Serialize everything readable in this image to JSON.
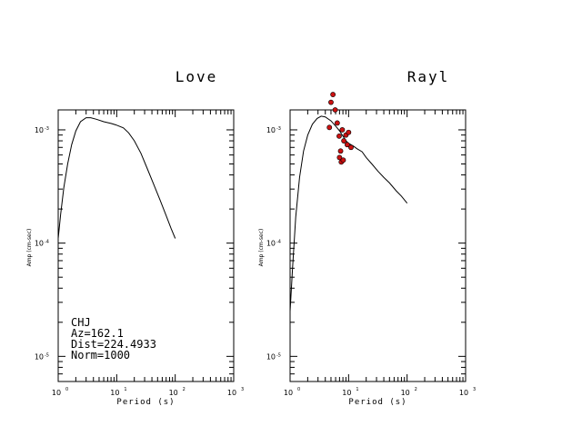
{
  "chart_data": [
    {
      "type": "line",
      "title": "Love",
      "xlabel": "Period (s)",
      "ylabel": "Amp (cm-sec)",
      "x_scale": "log",
      "y_scale": "log",
      "xlim": [
        1,
        1000
      ],
      "ylim": [
        6e-06,
        0.0015
      ],
      "x_ticks": [
        {
          "base": "10",
          "exp": "0"
        },
        {
          "base": "10",
          "exp": "1"
        },
        {
          "base": "10",
          "exp": "2"
        },
        {
          "base": "10",
          "exp": "3"
        }
      ],
      "y_ticks": [
        {
          "value": 1e-05,
          "base": "10",
          "exp": "-5"
        },
        {
          "value": 0.0001,
          "base": "10",
          "exp": "-4"
        },
        {
          "value": 0.001,
          "base": "10",
          "exp": "-3"
        }
      ],
      "series": [
        {
          "x": [
            1.0,
            1.1,
            1.25,
            1.45,
            1.7,
            2.0,
            2.4,
            3.0,
            3.6,
            4.5,
            6,
            8,
            10,
            13,
            16,
            20,
            26,
            33,
            42,
            55,
            70,
            85,
            100
          ],
          "y": [
            0.00011,
            0.00018,
            0.00031,
            0.0005,
            0.00074,
            0.00098,
            0.00118,
            0.00128,
            0.00128,
            0.00124,
            0.00118,
            0.00114,
            0.0011,
            0.00104,
            0.00094,
            0.0008,
            0.00062,
            0.00046,
            0.00034,
            0.00024,
            0.000175,
            0.000135,
            0.00011
          ]
        }
      ],
      "info": {
        "station": "CHJ",
        "az": "Az=162.1",
        "dist": "Dist=224.4933",
        "norm": "Norm=1000"
      },
      "grid": false
    },
    {
      "type": "line",
      "title": "Rayl",
      "xlabel": "Period (s)",
      "ylabel": "Amp (cm-sec)",
      "x_scale": "log",
      "y_scale": "log",
      "xlim": [
        1,
        1000
      ],
      "ylim": [
        6e-06,
        0.0015
      ],
      "x_ticks": [
        {
          "base": "10",
          "exp": "0"
        },
        {
          "base": "10",
          "exp": "1"
        },
        {
          "base": "10",
          "exp": "2"
        },
        {
          "base": "10",
          "exp": "3"
        }
      ],
      "y_ticks": [
        {
          "value": 1e-05,
          "base": "10",
          "exp": "-5"
        },
        {
          "value": 0.0001,
          "base": "10",
          "exp": "-4"
        },
        {
          "value": 0.001,
          "base": "10",
          "exp": "-3"
        }
      ],
      "series": [
        {
          "x": [
            1.0,
            1.1,
            1.25,
            1.45,
            1.7,
            2.0,
            2.4,
            2.9,
            3.4,
            4.0,
            5.0,
            6.0,
            7.0,
            8.0,
            9.0,
            10.0,
            12,
            14,
            17,
            20,
            25,
            32,
            40,
            50,
            65,
            80,
            100
          ],
          "y": [
            2.5e-05,
            6e-05,
            0.00017,
            0.00038,
            0.00065,
            0.0009,
            0.00112,
            0.00126,
            0.00132,
            0.0013,
            0.0012,
            0.00108,
            0.00098,
            0.00088,
            0.0008,
            0.00076,
            0.00072,
            0.00068,
            0.00064,
            0.00057,
            0.0005,
            0.00043,
            0.00038,
            0.00034,
            0.00029,
            0.00026,
            0.000225
          ]
        }
      ],
      "observations": {
        "color": "#cc1111",
        "x": [
          4.7,
          5.0,
          5.4,
          5.9,
          6.4,
          6.9,
          7.3,
          7.8,
          8.3,
          9.0,
          9.5,
          10.0,
          11.0,
          7.0,
          7.5,
          8.1
        ],
        "y": [
          0.00105,
          0.00175,
          0.00205,
          0.0015,
          0.00115,
          0.00088,
          0.00065,
          0.001,
          0.0008,
          0.0009,
          0.00074,
          0.00095,
          0.0007,
          0.00057,
          0.00052,
          0.00054
        ]
      },
      "grid": false
    }
  ]
}
